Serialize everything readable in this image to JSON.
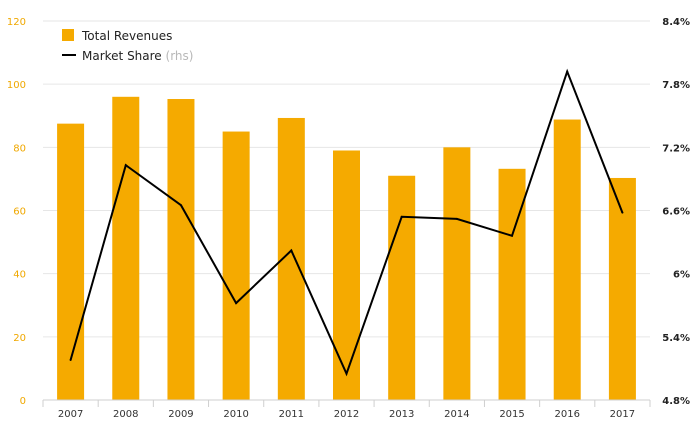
{
  "chart_data": {
    "type": "bar",
    "categories": [
      "2007",
      "2008",
      "2009",
      "2010",
      "2011",
      "2012",
      "2013",
      "2014",
      "2015",
      "2016",
      "2017"
    ],
    "series": [
      {
        "name": "Total Revenues",
        "type": "bar",
        "axis": "left",
        "color": "#f5aa00",
        "values": [
          87.5,
          96,
          95.3,
          85,
          89.3,
          79,
          71,
          80,
          73.2,
          88.8,
          70.3
        ]
      },
      {
        "name": "Market Share",
        "name_suffix": "(rhs)",
        "type": "line",
        "axis": "right",
        "color": "#000000",
        "values": [
          5.18,
          7.03,
          6.65,
          5.72,
          6.22,
          5.05,
          6.54,
          6.52,
          6.36,
          7.92,
          6.58
        ]
      }
    ],
    "left_axis": {
      "ylim": [
        0,
        120
      ],
      "ticks": [
        "0",
        "20",
        "40",
        "60",
        "80",
        "100",
        "120"
      ]
    },
    "right_axis": {
      "ylim": [
        4.8,
        8.4
      ],
      "ticks": [
        "4.8%",
        "5.4%",
        "6%",
        "6.6%",
        "7.2%",
        "7.8%",
        "8.4%"
      ]
    },
    "grid": "horizontal",
    "legend": "top-left",
    "title": "",
    "xlabel": "",
    "ylabel": ""
  }
}
